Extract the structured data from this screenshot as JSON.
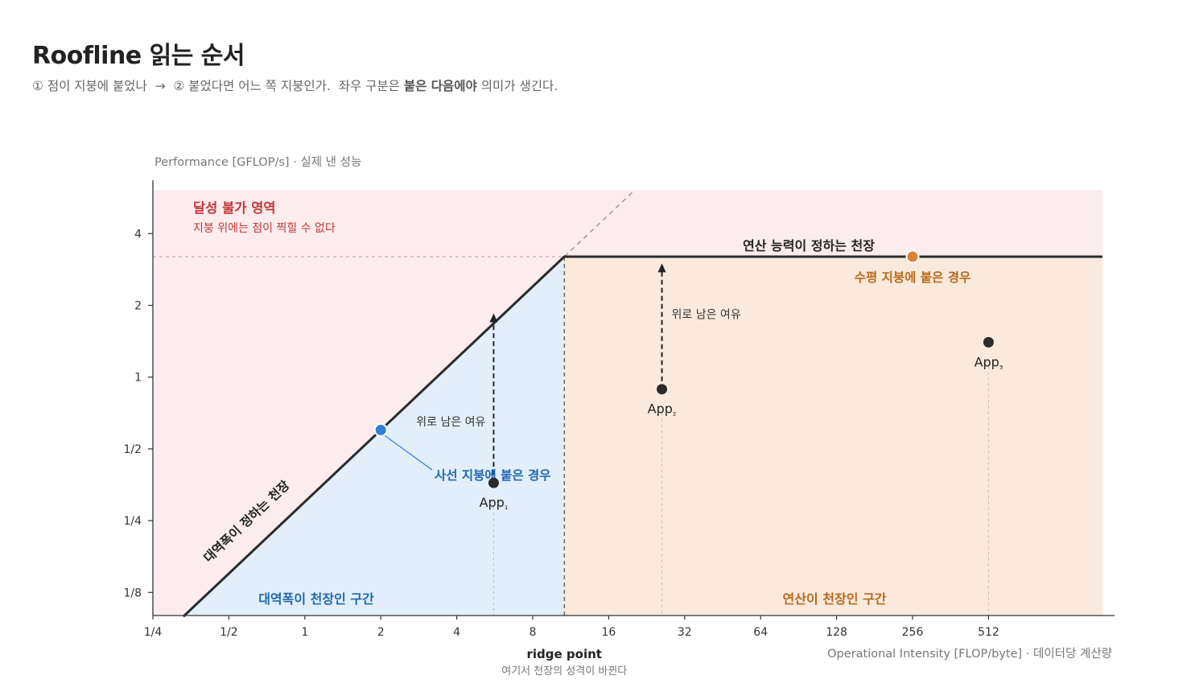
{
  "header": {
    "title": "Roofline 읽는 순서",
    "subtitle_parts": [
      {
        "text": "① 점이 지붕에 붙었나  →  ② 붙었다면 어느 쪽 지붕인가.  좌우 구분은 ",
        "bold": false
      },
      {
        "text": "붙은 다음에야",
        "bold": true
      },
      {
        "text": " 의미가 생긴다.",
        "bold": false
      }
    ]
  },
  "colors": {
    "unreachable_bg": "#fdeced",
    "memory_bg": "#e2effb",
    "compute_bg": "#fbeadc",
    "roof_line": "#2a2a2a",
    "axis": "#333333",
    "unreachable_text": "#c0393b",
    "memory_text": "#2267b3",
    "compute_text": "#b8691d",
    "memory_point": "#2f7fd6",
    "compute_point": "#d9833a",
    "app_point": "#2a2a2a",
    "guide": "#c89a9a",
    "muted_text": "#888888"
  },
  "chart_data": {
    "type": "line",
    "x_scale": "log2",
    "y_scale": "log2",
    "xlim": [
      0.25,
      1448
    ],
    "ylim": [
      0.1,
      6.1
    ],
    "ylabel": "Performance [GFLOP/s] · 실제 낸 성능",
    "xlabel": "Operational Intensity [FLOP/byte] · 데이터당 계산량",
    "x_ticks": [
      {
        "value": 0.25,
        "label": "1/4"
      },
      {
        "value": 0.5,
        "label": "1/2"
      },
      {
        "value": 1,
        "label": "1"
      },
      {
        "value": 2,
        "label": "2"
      },
      {
        "value": 4,
        "label": "4"
      },
      {
        "value": 8,
        "label": "8"
      },
      {
        "value": 16,
        "label": "16"
      },
      {
        "value": 32,
        "label": "32"
      },
      {
        "value": 64,
        "label": "64"
      },
      {
        "value": 128,
        "label": "128"
      },
      {
        "value": 256,
        "label": "256"
      },
      {
        "value": 512,
        "label": "512"
      }
    ],
    "y_ticks": [
      {
        "value": 0.125,
        "label": "1/8"
      },
      {
        "value": 0.25,
        "label": "1/4"
      },
      {
        "value": 0.5,
        "label": "1/2"
      },
      {
        "value": 1,
        "label": "1"
      },
      {
        "value": 2,
        "label": "2"
      },
      {
        "value": 4,
        "label": "4"
      }
    ],
    "roofline": {
      "bandwidth_slope": 0.3,
      "peak_performance": 3.2,
      "ridge_point_x": 10.67,
      "start_x": 0.33,
      "end_x": 1448,
      "dashed_extension_to_x": 20
    },
    "ridge_point": {
      "label": "ridge point",
      "note": "여기서 천장의 성격이 바뀐다"
    },
    "regions": [
      {
        "name": "unreachable",
        "label": "달성 불가 영역",
        "note": "지붕 위에는 점이 찍힐 수 없다"
      },
      {
        "name": "memory_bound",
        "label": "대역폭이 천장인 구간"
      },
      {
        "name": "compute_bound",
        "label": "연산이 천장인 구간"
      }
    ],
    "roof_labels": {
      "bandwidth": "대역폭이 정하는 천장",
      "compute": "연산 능력이 정하는 천장"
    },
    "points": [
      {
        "name": "memory-roof-point",
        "x": 2,
        "y": 0.6,
        "label": "사선 지붕에 붙은 경우",
        "kind": "memory"
      },
      {
        "name": "compute-roof-point",
        "x": 256,
        "y": 3.2,
        "label": "수평 지붕에 붙은 경우",
        "kind": "compute"
      },
      {
        "name": "app1",
        "x": 5.6,
        "y": 0.36,
        "label_main": "App",
        "label_sub": "₁",
        "kind": "app",
        "headroom_to": 1.85,
        "headroom_label": "위로 남은 여유"
      },
      {
        "name": "app2",
        "x": 26,
        "y": 0.89,
        "label_main": "App",
        "label_sub": "₂",
        "kind": "app",
        "headroom_to": 3.0,
        "headroom_label": "위로 남은 여유"
      },
      {
        "name": "app3",
        "x": 512,
        "y": 1.4,
        "label_main": "App",
        "label_sub": "₃",
        "kind": "app"
      }
    ]
  }
}
